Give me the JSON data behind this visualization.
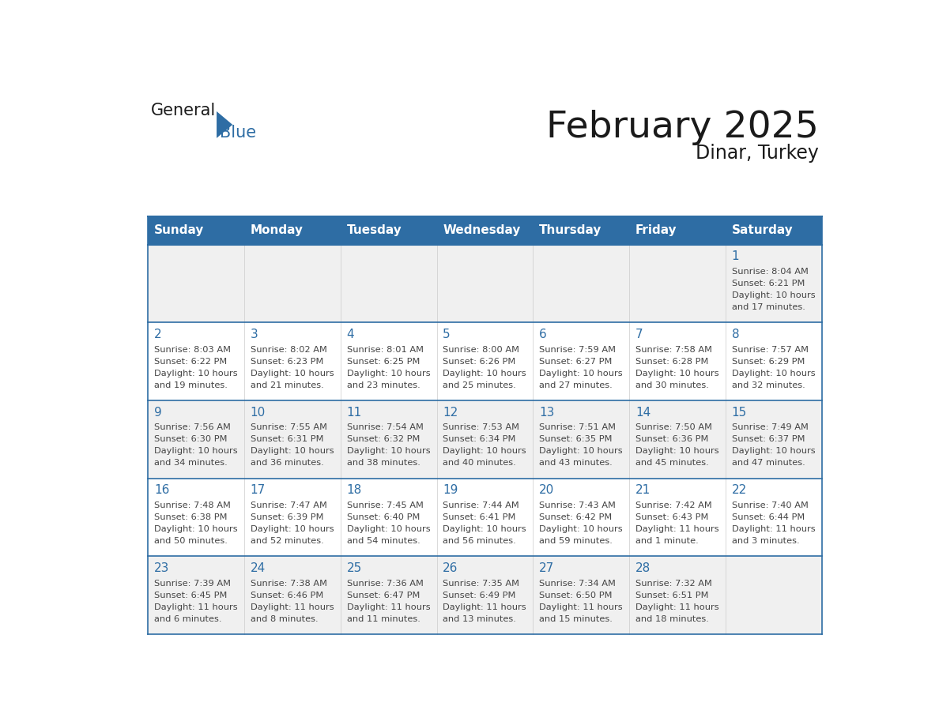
{
  "title": "February 2025",
  "subtitle": "Dinar, Turkey",
  "days_of_week": [
    "Sunday",
    "Monday",
    "Tuesday",
    "Wednesday",
    "Thursday",
    "Friday",
    "Saturday"
  ],
  "header_bg": "#2e6da4",
  "header_text": "#ffffff",
  "cell_bg": "#f0f0f0",
  "cell_bg_white": "#ffffff",
  "line_color": "#2e6da4",
  "date_color": "#2e6da4",
  "info_color": "#444444",
  "title_color": "#1a1a1a",
  "calendar_data": [
    [
      {
        "day": null
      },
      {
        "day": null
      },
      {
        "day": null
      },
      {
        "day": null
      },
      {
        "day": null
      },
      {
        "day": null
      },
      {
        "day": 1,
        "sunrise": "8:04 AM",
        "sunset": "6:21 PM",
        "daylight_h": "10 hours",
        "daylight_m": "17 minutes."
      }
    ],
    [
      {
        "day": 2,
        "sunrise": "8:03 AM",
        "sunset": "6:22 PM",
        "daylight_h": "10 hours",
        "daylight_m": "19 minutes."
      },
      {
        "day": 3,
        "sunrise": "8:02 AM",
        "sunset": "6:23 PM",
        "daylight_h": "10 hours",
        "daylight_m": "21 minutes."
      },
      {
        "day": 4,
        "sunrise": "8:01 AM",
        "sunset": "6:25 PM",
        "daylight_h": "10 hours",
        "daylight_m": "23 minutes."
      },
      {
        "day": 5,
        "sunrise": "8:00 AM",
        "sunset": "6:26 PM",
        "daylight_h": "10 hours",
        "daylight_m": "25 minutes."
      },
      {
        "day": 6,
        "sunrise": "7:59 AM",
        "sunset": "6:27 PM",
        "daylight_h": "10 hours",
        "daylight_m": "27 minutes."
      },
      {
        "day": 7,
        "sunrise": "7:58 AM",
        "sunset": "6:28 PM",
        "daylight_h": "10 hours",
        "daylight_m": "30 minutes."
      },
      {
        "day": 8,
        "sunrise": "7:57 AM",
        "sunset": "6:29 PM",
        "daylight_h": "10 hours",
        "daylight_m": "32 minutes."
      }
    ],
    [
      {
        "day": 9,
        "sunrise": "7:56 AM",
        "sunset": "6:30 PM",
        "daylight_h": "10 hours",
        "daylight_m": "34 minutes."
      },
      {
        "day": 10,
        "sunrise": "7:55 AM",
        "sunset": "6:31 PM",
        "daylight_h": "10 hours",
        "daylight_m": "36 minutes."
      },
      {
        "day": 11,
        "sunrise": "7:54 AM",
        "sunset": "6:32 PM",
        "daylight_h": "10 hours",
        "daylight_m": "38 minutes."
      },
      {
        "day": 12,
        "sunrise": "7:53 AM",
        "sunset": "6:34 PM",
        "daylight_h": "10 hours",
        "daylight_m": "40 minutes."
      },
      {
        "day": 13,
        "sunrise": "7:51 AM",
        "sunset": "6:35 PM",
        "daylight_h": "10 hours",
        "daylight_m": "43 minutes."
      },
      {
        "day": 14,
        "sunrise": "7:50 AM",
        "sunset": "6:36 PM",
        "daylight_h": "10 hours",
        "daylight_m": "45 minutes."
      },
      {
        "day": 15,
        "sunrise": "7:49 AM",
        "sunset": "6:37 PM",
        "daylight_h": "10 hours",
        "daylight_m": "47 minutes."
      }
    ],
    [
      {
        "day": 16,
        "sunrise": "7:48 AM",
        "sunset": "6:38 PM",
        "daylight_h": "10 hours",
        "daylight_m": "50 minutes."
      },
      {
        "day": 17,
        "sunrise": "7:47 AM",
        "sunset": "6:39 PM",
        "daylight_h": "10 hours",
        "daylight_m": "52 minutes."
      },
      {
        "day": 18,
        "sunrise": "7:45 AM",
        "sunset": "6:40 PM",
        "daylight_h": "10 hours",
        "daylight_m": "54 minutes."
      },
      {
        "day": 19,
        "sunrise": "7:44 AM",
        "sunset": "6:41 PM",
        "daylight_h": "10 hours",
        "daylight_m": "56 minutes."
      },
      {
        "day": 20,
        "sunrise": "7:43 AM",
        "sunset": "6:42 PM",
        "daylight_h": "10 hours",
        "daylight_m": "59 minutes."
      },
      {
        "day": 21,
        "sunrise": "7:42 AM",
        "sunset": "6:43 PM",
        "daylight_h": "11 hours",
        "daylight_m": "1 minute."
      },
      {
        "day": 22,
        "sunrise": "7:40 AM",
        "sunset": "6:44 PM",
        "daylight_h": "11 hours",
        "daylight_m": "3 minutes."
      }
    ],
    [
      {
        "day": 23,
        "sunrise": "7:39 AM",
        "sunset": "6:45 PM",
        "daylight_h": "11 hours",
        "daylight_m": "6 minutes."
      },
      {
        "day": 24,
        "sunrise": "7:38 AM",
        "sunset": "6:46 PM",
        "daylight_h": "11 hours",
        "daylight_m": "8 minutes."
      },
      {
        "day": 25,
        "sunrise": "7:36 AM",
        "sunset": "6:47 PM",
        "daylight_h": "11 hours",
        "daylight_m": "11 minutes."
      },
      {
        "day": 26,
        "sunrise": "7:35 AM",
        "sunset": "6:49 PM",
        "daylight_h": "11 hours",
        "daylight_m": "13 minutes."
      },
      {
        "day": 27,
        "sunrise": "7:34 AM",
        "sunset": "6:50 PM",
        "daylight_h": "11 hours",
        "daylight_m": "15 minutes."
      },
      {
        "day": 28,
        "sunrise": "7:32 AM",
        "sunset": "6:51 PM",
        "daylight_h": "11 hours",
        "daylight_m": "18 minutes."
      },
      {
        "day": null
      }
    ]
  ]
}
